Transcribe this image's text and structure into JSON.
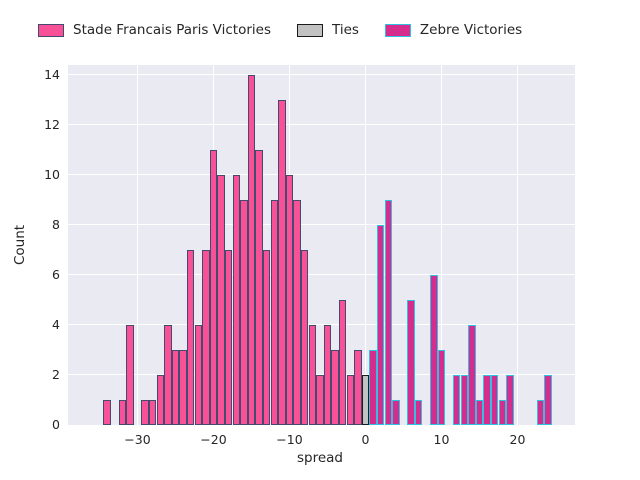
{
  "legend": {
    "items": [
      {
        "label": "Stade Francais Paris Victories"
      },
      {
        "label": "Ties"
      },
      {
        "label": "Zebre Victories"
      }
    ]
  },
  "chart_data": {
    "type": "bar",
    "subtype": "histogram",
    "title": "",
    "xlabel": "spread",
    "ylabel": "Count",
    "xlim": [
      -39.1,
      27.6
    ],
    "ylim": [
      0,
      14.4
    ],
    "x_ticks": [
      -30,
      -20,
      -10,
      0,
      10,
      20
    ],
    "y_ticks": [
      0,
      2,
      4,
      6,
      8,
      10,
      12,
      14
    ],
    "grid": true,
    "legend_position": "top-horizontal",
    "bin_width": 1,
    "background": "#eaeaf2",
    "series": [
      {
        "name": "Stade Francais Paris Victories",
        "fill": "#f85197",
        "edge": "#454b6f",
        "bars": [
          {
            "x": -34,
            "count": 1
          },
          {
            "x": -32,
            "count": 1
          },
          {
            "x": -31,
            "count": 4
          },
          {
            "x": -29,
            "count": 1
          },
          {
            "x": -28,
            "count": 1
          },
          {
            "x": -27,
            "count": 2
          },
          {
            "x": -26,
            "count": 4
          },
          {
            "x": -25,
            "count": 3
          },
          {
            "x": -24,
            "count": 3
          },
          {
            "x": -23,
            "count": 7
          },
          {
            "x": -22,
            "count": 4
          },
          {
            "x": -21,
            "count": 7
          },
          {
            "x": -20,
            "count": 11
          },
          {
            "x": -19,
            "count": 10
          },
          {
            "x": -18,
            "count": 7
          },
          {
            "x": -17,
            "count": 10
          },
          {
            "x": -16,
            "count": 9
          },
          {
            "x": -15,
            "count": 14
          },
          {
            "x": -14,
            "count": 11
          },
          {
            "x": -13,
            "count": 7
          },
          {
            "x": -12,
            "count": 9
          },
          {
            "x": -11,
            "count": 13
          },
          {
            "x": -10,
            "count": 10
          },
          {
            "x": -9,
            "count": 9
          },
          {
            "x": -8,
            "count": 7
          },
          {
            "x": -7,
            "count": 4
          },
          {
            "x": -6,
            "count": 2
          },
          {
            "x": -5,
            "count": 4
          },
          {
            "x": -4,
            "count": 3
          },
          {
            "x": -3,
            "count": 5
          },
          {
            "x": -2,
            "count": 2
          },
          {
            "x": -1,
            "count": 3
          }
        ]
      },
      {
        "name": "Ties",
        "fill": "#c3c2c2",
        "edge": "#1b1b1b",
        "bars": [
          {
            "x": 0,
            "count": 2
          }
        ]
      },
      {
        "name": "Zebre Victories",
        "fill": "#d52d8d",
        "edge": "#32bfe2",
        "bars": [
          {
            "x": 1,
            "count": 3
          },
          {
            "x": 2,
            "count": 8
          },
          {
            "x": 3,
            "count": 9
          },
          {
            "x": 4,
            "count": 1
          },
          {
            "x": 6,
            "count": 5
          },
          {
            "x": 7,
            "count": 1
          },
          {
            "x": 9,
            "count": 6
          },
          {
            "x": 10,
            "count": 3
          },
          {
            "x": 12,
            "count": 2
          },
          {
            "x": 13,
            "count": 2
          },
          {
            "x": 14,
            "count": 4
          },
          {
            "x": 15,
            "count": 1
          },
          {
            "x": 16,
            "count": 2
          },
          {
            "x": 17,
            "count": 2
          },
          {
            "x": 18,
            "count": 1
          },
          {
            "x": 19,
            "count": 2
          },
          {
            "x": 23,
            "count": 1
          },
          {
            "x": 24,
            "count": 2
          }
        ]
      }
    ]
  }
}
